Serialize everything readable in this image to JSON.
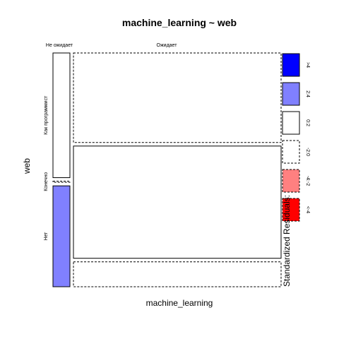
{
  "chart_data": {
    "type": "mosaic",
    "title": "machine_learning ~ web",
    "xlabel": "machine_learning",
    "ylabel": "web",
    "x_categories": [
      "Не ожидает",
      "Ожидает"
    ],
    "y_categories": [
      "Как программист",
      "Конечно",
      "Нет"
    ],
    "cells": [
      {
        "x": "Не ожидает",
        "y": "Как программист",
        "proportion_x": 0.076,
        "proportion_y": 0.55,
        "residual_class": "0:2"
      },
      {
        "x": "Не ожидает",
        "y": "Конечно",
        "proportion_x": 0.076,
        "proportion_y": 0.005,
        "residual_class": "-2:0"
      },
      {
        "x": "Не ожидает",
        "y": "Нет",
        "proportion_x": 0.076,
        "proportion_y": 0.445,
        "residual_class": "2:4"
      },
      {
        "x": "Ожидает",
        "y": "Как программист",
        "proportion_x": 0.924,
        "proportion_y": 0.395,
        "residual_class": "-2:0"
      },
      {
        "x": "Ожидает",
        "y": "Конечно",
        "proportion_x": 0.924,
        "proportion_y": 0.495,
        "residual_class": "0:2"
      },
      {
        "x": "Ожидает",
        "y": "Нет",
        "proportion_x": 0.924,
        "proportion_y": 0.11,
        "residual_class": "-2:0"
      }
    ],
    "legend": {
      "title": "Standardized Residuals:",
      "placement": "right",
      "items": [
        {
          "label": ">4",
          "color": "#0000ff",
          "dashed": false
        },
        {
          "label": "2:4",
          "color": "#8080ff",
          "dashed": false
        },
        {
          "label": "0:2",
          "color": "#ffffff",
          "dashed": false
        },
        {
          "label": "-2:0",
          "color": "#ffffff",
          "dashed": true
        },
        {
          "label": "-4:-2",
          "color": "#ff8080",
          "dashed": true
        },
        {
          "label": "<-4",
          "color": "#ff0000",
          "dashed": true
        }
      ]
    }
  }
}
